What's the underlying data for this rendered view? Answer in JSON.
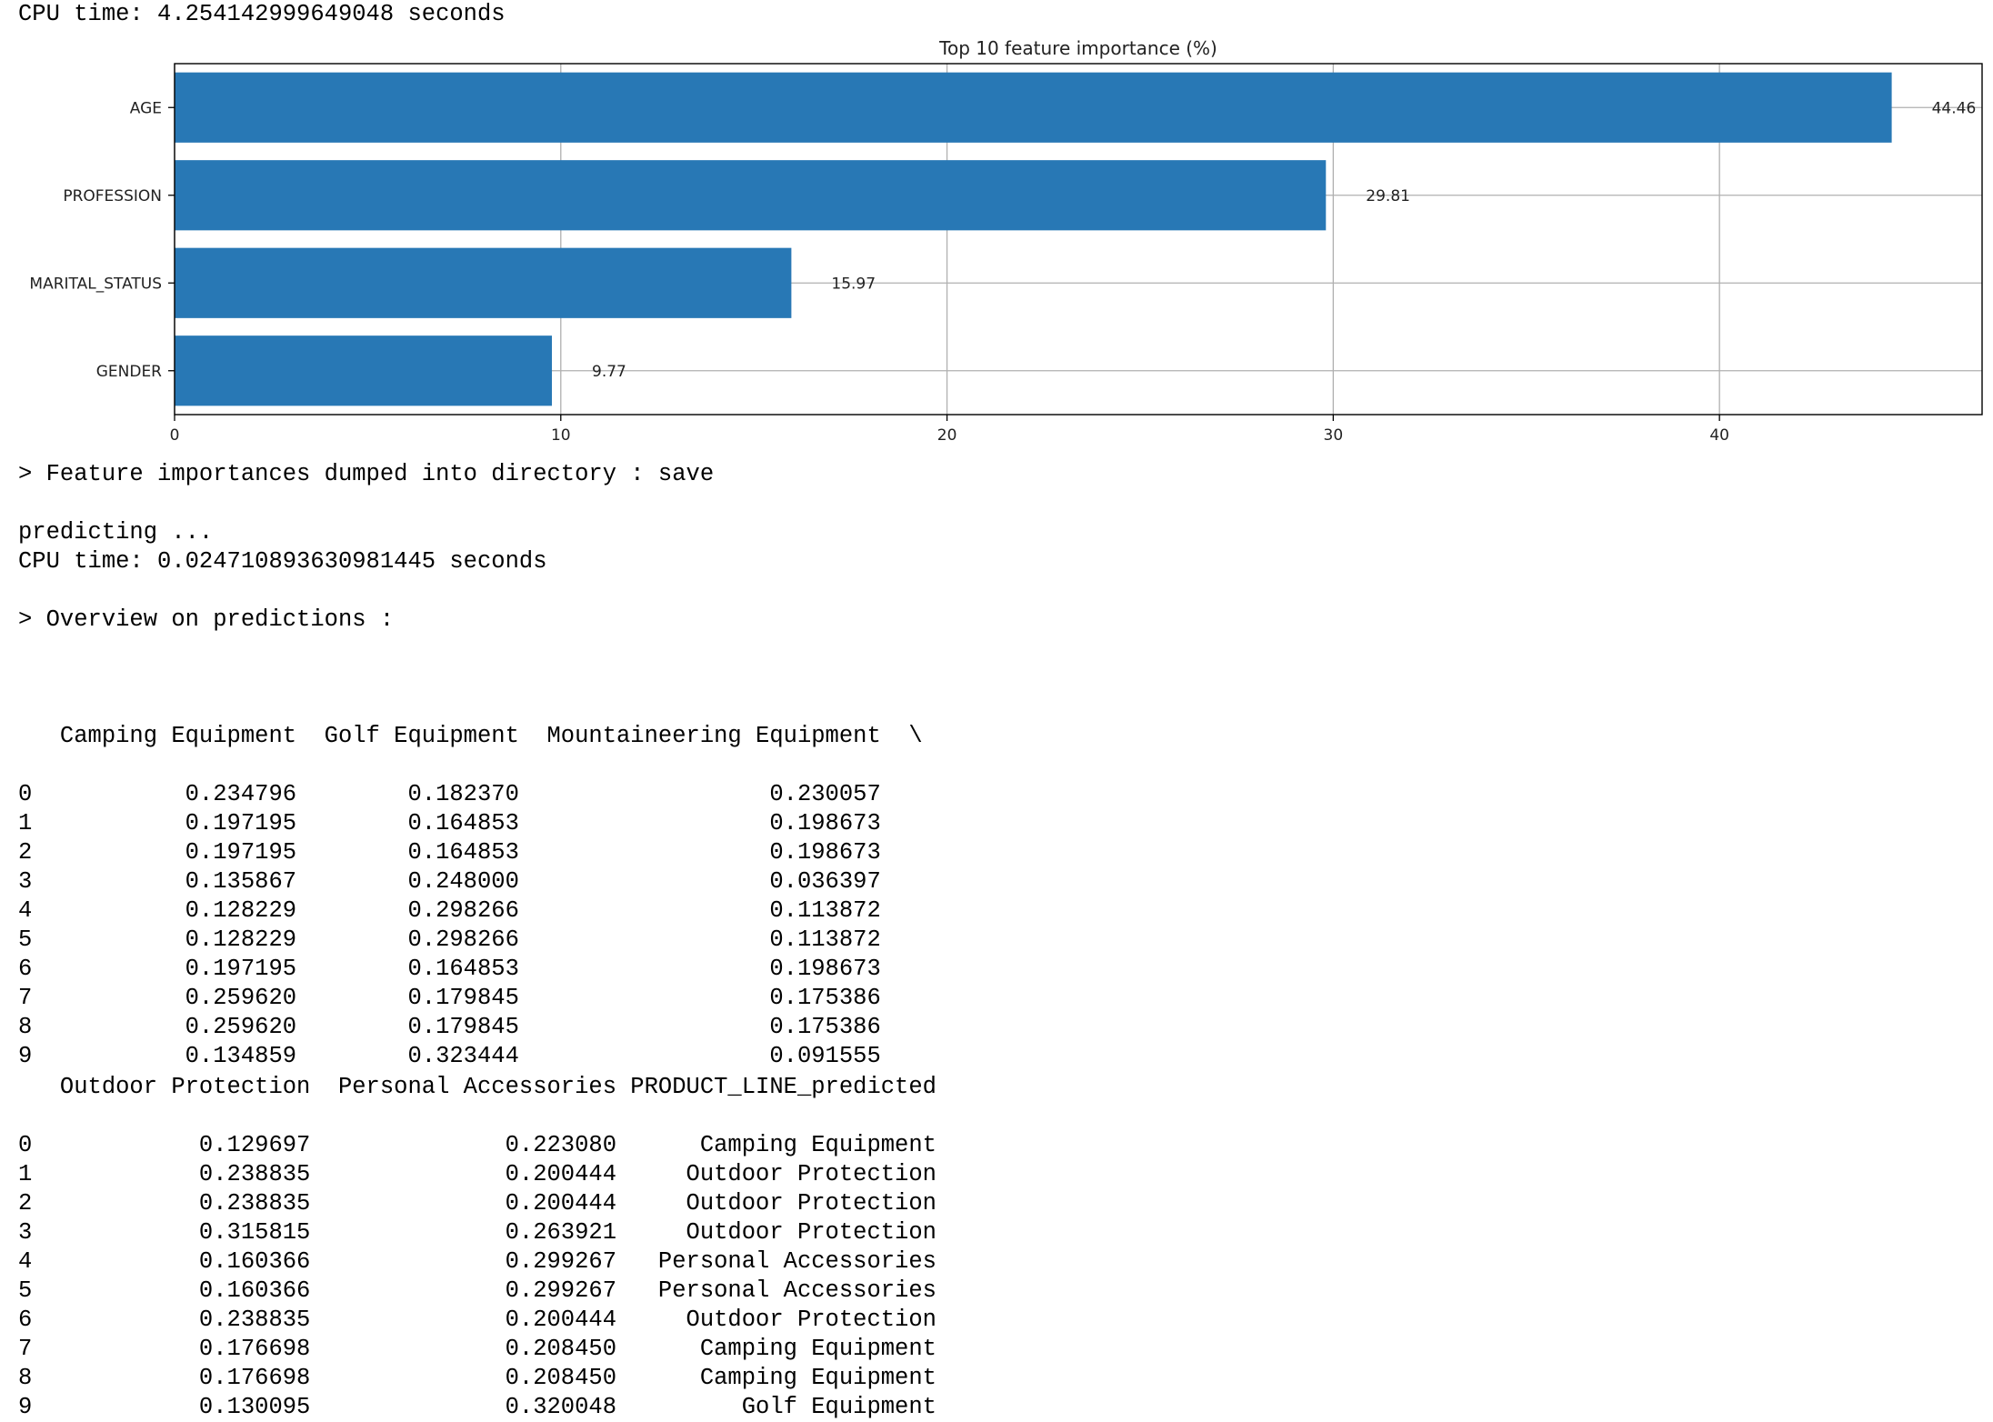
{
  "output": {
    "cpu_time_1": "CPU time: 4.254142999649048 seconds",
    "dump_msg": "> Feature importances dumped into directory : save",
    "predicting": "predicting ...",
    "cpu_time_2": "CPU time: 0.024710893630981445 seconds",
    "overview": "> Overview on predictions :"
  },
  "chart_data": {
    "type": "bar",
    "orientation": "horizontal",
    "title": "Top 10 feature importance (%)",
    "categories": [
      "AGE",
      "PROFESSION",
      "MARITAL_STATUS",
      "GENDER"
    ],
    "values": [
      44.46,
      29.81,
      15.97,
      9.77
    ],
    "value_labels": [
      "44.46",
      "29.81",
      "15.97",
      "9.77"
    ],
    "xticks": [
      "0",
      "10",
      "20",
      "30",
      "40"
    ],
    "xlim": [
      0,
      46.8
    ],
    "grid": true,
    "bar_color": "#2878b5"
  },
  "table1": {
    "header_line": "   Camping Equipment  Golf Equipment  Mountaineering Equipment  \\",
    "rows": [
      "0           0.234796        0.182370                  0.230057",
      "1           0.197195        0.164853                  0.198673",
      "2           0.197195        0.164853                  0.198673",
      "3           0.135867        0.248000                  0.036397",
      "4           0.128229        0.298266                  0.113872",
      "5           0.128229        0.298266                  0.113872",
      "6           0.197195        0.164853                  0.198673",
      "7           0.259620        0.179845                  0.175386",
      "8           0.259620        0.179845                  0.175386",
      "9           0.134859        0.323444                  0.091555"
    ]
  },
  "table2": {
    "header_line": "   Outdoor Protection  Personal Accessories PRODUCT_LINE_predicted",
    "rows": [
      "0            0.129697              0.223080      Camping Equipment",
      "1            0.238835              0.200444     Outdoor Protection",
      "2            0.238835              0.200444     Outdoor Protection",
      "3            0.315815              0.263921     Outdoor Protection",
      "4            0.160366              0.299267   Personal Accessories",
      "5            0.160366              0.299267   Personal Accessories",
      "6            0.238835              0.200444     Outdoor Protection",
      "7            0.176698              0.208450      Camping Equipment",
      "8            0.176698              0.208450      Camping Equipment",
      "9            0.130095              0.320048         Golf Equipment"
    ]
  }
}
